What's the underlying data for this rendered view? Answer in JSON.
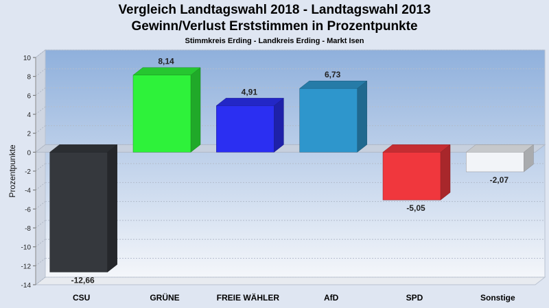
{
  "colors": {
    "page_bg": "#dfe6f2",
    "plot_top": "#8fb0dc",
    "plot_bottom": "#f4f6fa"
  },
  "chart_data": {
    "type": "bar",
    "title": "Vergleich Landtagswahl 2018 - Landtagswahl 2013",
    "subtitle": "Gewinn/Verlust Erststimmen in Prozentpunkte",
    "subsubtitle": "Stimmkreis Erding - Landkreis Erding - Markt Isen",
    "xlabel": "",
    "ylabel": "Prozentpunkte",
    "ylim": [
      -14,
      10
    ],
    "yticks": [
      10,
      8,
      6,
      4,
      2,
      0,
      -2,
      -4,
      -6,
      -8,
      -10,
      -12,
      -14
    ],
    "grid": true,
    "categories": [
      "CSU",
      "GRÜNE",
      "FREIE WÄHLER",
      "AfD",
      "SPD",
      "Sonstige"
    ],
    "values": [
      -12.66,
      8.14,
      4.91,
      6.73,
      -5.05,
      -2.07
    ],
    "value_labels": [
      "-12,66",
      "8,14",
      "4,91",
      "6,73",
      "-5,05",
      "-2,07"
    ],
    "bar_colors": [
      "#35383d",
      "#2ef23a",
      "#2b2ff2",
      "#2e96cc",
      "#f0373d",
      "#f2f4f8"
    ]
  }
}
